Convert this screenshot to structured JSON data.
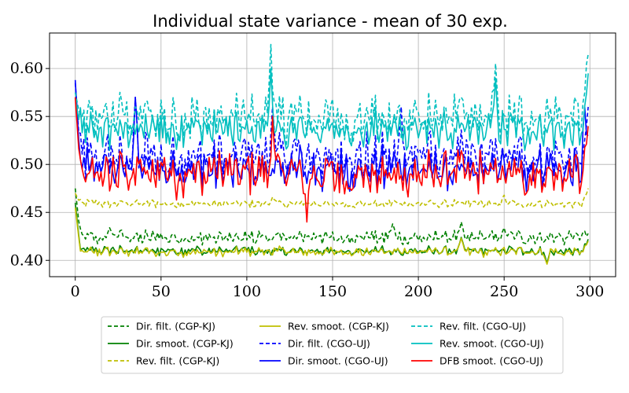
{
  "chart_data": {
    "type": "line",
    "title": "Individual state variance - mean of 30 exp.",
    "xlabel": "",
    "ylabel": "",
    "xlim": [
      -15,
      315
    ],
    "ylim": [
      0.383,
      0.637
    ],
    "xticks": [
      0,
      50,
      100,
      150,
      200,
      250,
      300
    ],
    "yticks": [
      0.4,
      0.45,
      0.5,
      0.55,
      0.6
    ],
    "xtick_labels": [
      "0",
      "50",
      "100",
      "150",
      "200",
      "250",
      "300"
    ],
    "ytick_labels": [
      "0.40",
      "0.45",
      "0.50",
      "0.55",
      "0.60"
    ],
    "grid": true,
    "legend_position": "below plot, 3 columns",
    "n_points": 300,
    "series": [
      {
        "name": "Dir. filt. (CGP-KJ)",
        "color": "#008000",
        "dash": true,
        "approx": {
          "start": 0.475,
          "mean": 0.424,
          "amp": 0.009,
          "peaks": [
            [
              185,
              0.438
            ],
            [
              225,
              0.44
            ],
            [
              250,
              0.434
            ],
            [
              20,
              0.434
            ]
          ],
          "end": 0.428
        }
      },
      {
        "name": "Dir. smoot. (CGP-KJ)",
        "color": "#008000",
        "dash": false,
        "approx": {
          "start": 0.46,
          "mean": 0.41,
          "amp": 0.006,
          "peaks": [
            [
              225,
              0.424
            ],
            [
              275,
              0.397
            ]
          ],
          "end": 0.422
        }
      },
      {
        "name": "Rev. filt. (CGP-KJ)",
        "color": "#bfbf00",
        "dash": true,
        "approx": {
          "start": 0.47,
          "mean": 0.459,
          "amp": 0.005,
          "peaks": [
            [
              115,
              0.466
            ],
            [
              250,
              0.468
            ]
          ],
          "end": 0.475
        }
      },
      {
        "name": "Rev. smoot. (CGP-KJ)",
        "color": "#bfbf00",
        "dash": false,
        "approx": {
          "start": 0.455,
          "mean": 0.409,
          "amp": 0.006,
          "peaks": [
            [
              225,
              0.423
            ],
            [
              275,
              0.396
            ]
          ],
          "end": 0.42
        }
      },
      {
        "name": "Dir. filt. (CGO-UJ)",
        "color": "#0000ff",
        "dash": true,
        "approx": {
          "start": 0.585,
          "mean": 0.508,
          "amp": 0.03,
          "peaks": [
            [
              35,
              0.57
            ],
            [
              115,
              0.56
            ],
            [
              190,
              0.56
            ]
          ],
          "end": 0.56
        }
      },
      {
        "name": "Dir. smoot. (CGO-UJ)",
        "color": "#0000ff",
        "dash": false,
        "approx": {
          "start": 0.588,
          "mean": 0.495,
          "amp": 0.028,
          "peaks": [
            [
              35,
              0.57
            ],
            [
              297,
              0.575
            ]
          ],
          "end": 0.53
        }
      },
      {
        "name": "Rev. filt. (CGO-UJ)",
        "color": "#00bfbf",
        "dash": true,
        "approx": {
          "start": 0.575,
          "mean": 0.548,
          "amp": 0.03,
          "peaks": [
            [
              114,
              0.625
            ],
            [
              245,
              0.605
            ],
            [
              299,
              0.615
            ]
          ],
          "end": 0.615
        }
      },
      {
        "name": "Rev. smoot. (CGO-UJ)",
        "color": "#00bfbf",
        "dash": false,
        "approx": {
          "start": 0.57,
          "mean": 0.535,
          "amp": 0.025,
          "peaks": [
            [
              114,
              0.6
            ],
            [
              245,
              0.59
            ]
          ],
          "end": 0.595
        }
      },
      {
        "name": "DFB smoot. (CGO-UJ)",
        "color": "#ff0000",
        "dash": false,
        "approx": {
          "start": 0.57,
          "mean": 0.49,
          "amp": 0.028,
          "peaks": [
            [
              115,
              0.55
            ],
            [
              135,
              0.44
            ]
          ],
          "end": 0.54
        }
      }
    ]
  }
}
